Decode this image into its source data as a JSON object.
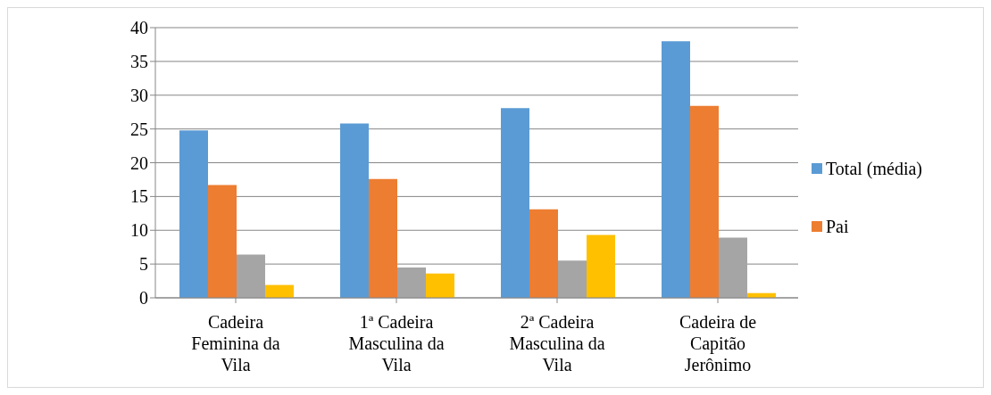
{
  "chart_data": {
    "type": "bar",
    "categories": [
      "Cadeira Feminina da Vila",
      "1ª Cadeira Masculina da Vila",
      "2ª Cadeira Masculina da Vila",
      "Cadeira de Capitão Jerônimo"
    ],
    "series": [
      {
        "name": "Total (média)",
        "color": "#5b9bd5",
        "values": [
          24.8,
          25.8,
          28.1,
          38
        ]
      },
      {
        "name": "Pai",
        "color": "#ed7d31",
        "values": [
          16.7,
          17.6,
          13.1,
          28.4
        ]
      },
      {
        "color": "#a5a5a5",
        "values": [
          6.4,
          4.5,
          5.5,
          8.9
        ]
      },
      {
        "color": "#ffc000",
        "values": [
          1.9,
          3.6,
          9.3,
          0.7
        ]
      }
    ],
    "ylim": [
      0,
      40
    ],
    "yticks": [
      0,
      5,
      10,
      15,
      20,
      25,
      30,
      35,
      40
    ],
    "grid": "y",
    "legend": "right"
  }
}
